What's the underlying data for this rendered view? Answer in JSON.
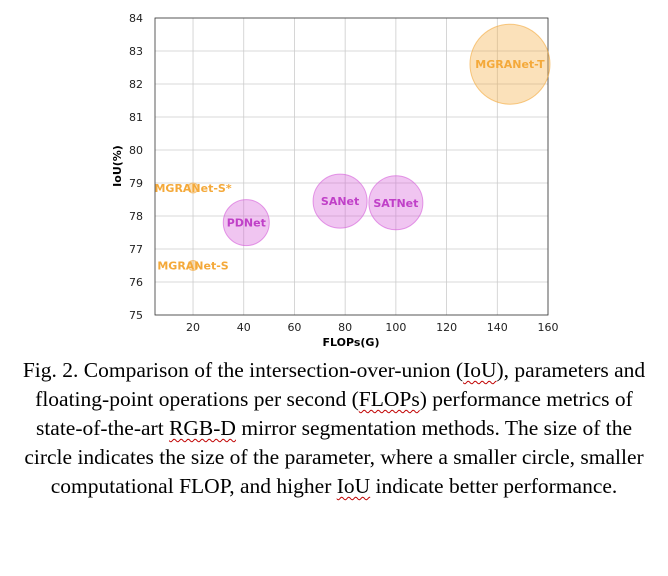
{
  "chart_data": {
    "type": "scatter",
    "xlabel": "FLOPs(G)",
    "ylabel": "IoU(%)",
    "xlim": [
      5,
      160
    ],
    "ylim": [
      75,
      84
    ],
    "xticks": [
      20,
      40,
      60,
      80,
      100,
      120,
      140,
      160
    ],
    "yticks": [
      75,
      76,
      77,
      78,
      79,
      80,
      81,
      82,
      83,
      84
    ],
    "grid": true,
    "points": [
      {
        "label": "MGRANet-S*",
        "x": 20,
        "y": 78.85,
        "size": 5,
        "color": "#f4a93a"
      },
      {
        "label": "MGRANet-S",
        "x": 20,
        "y": 76.5,
        "size": 5,
        "color": "#f4a93a"
      },
      {
        "label": "PDNet",
        "x": 41,
        "y": 77.8,
        "size": 23,
        "color": "#d45ad8"
      },
      {
        "label": "SANet",
        "x": 78,
        "y": 78.45,
        "size": 27,
        "color": "#d45ad8"
      },
      {
        "label": "SATNet",
        "x": 100,
        "y": 78.4,
        "size": 27,
        "color": "#d45ad8"
      },
      {
        "label": "MGRANet-T",
        "x": 145,
        "y": 82.6,
        "size": 40,
        "color": "#f4a93a"
      }
    ],
    "label_colors": {
      "orange": "#f4a93a",
      "purple": "#c040c8"
    }
  },
  "caption": {
    "parts": [
      {
        "text": "Fig. 2. Comparison of the intersection-over-union (",
        "wavy": false
      },
      {
        "text": "IoU",
        "wavy": true
      },
      {
        "text": "), parameters and floating-point operations per second (",
        "wavy": false
      },
      {
        "text": "FLOPs",
        "wavy": true
      },
      {
        "text": ") performance metrics of state-of-the-art ",
        "wavy": false
      },
      {
        "text": "RGB-D",
        "wavy": true
      },
      {
        "text": " mirror segmentation methods. The size of the circle indicates the size of the parameter, where a smaller circle, smaller computational FLOP, and higher ",
        "wavy": false
      },
      {
        "text": "IoU",
        "wavy": true
      },
      {
        "text": " indicate better performance.",
        "wavy": false
      }
    ]
  }
}
